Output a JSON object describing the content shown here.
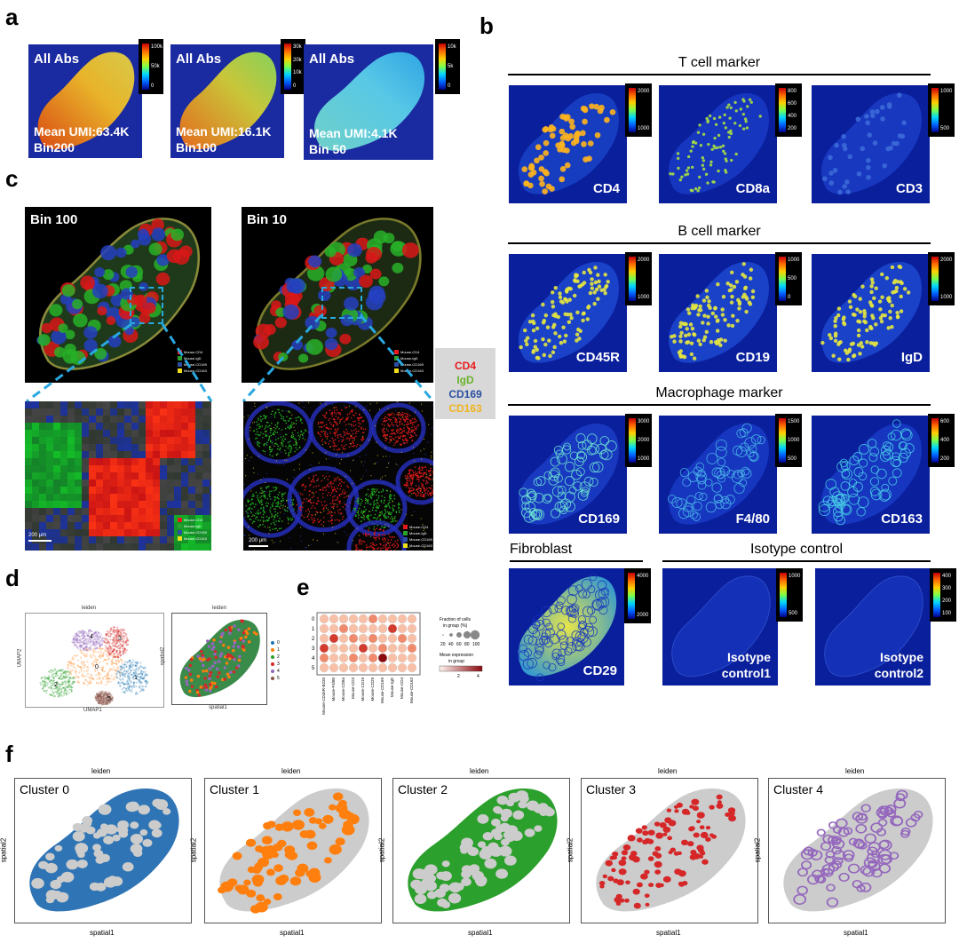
{
  "panel_labels": {
    "a": "a",
    "b": "b",
    "c": "c",
    "d": "d",
    "e": "e",
    "f": "f"
  },
  "panel_a": {
    "tiles": [
      {
        "title": "All Abs",
        "caption1": "Mean UMI:63.4K",
        "caption2": "Bin200",
        "ticks": [
          "100k",
          "50k",
          "0"
        ]
      },
      {
        "title": "All Abs",
        "caption1": "Mean UMI:16.1K",
        "caption2": "Bin100",
        "ticks": [
          "30k",
          "20k",
          "10k",
          "0"
        ]
      },
      {
        "title": "All Abs",
        "caption1": "Mean UMI:4.1K",
        "caption2": "Bin 50",
        "ticks": [
          "10k",
          "5k",
          "0"
        ]
      }
    ]
  },
  "panel_b": {
    "sections": [
      {
        "title": "T cell marker",
        "tiles": [
          {
            "label": "CD4",
            "ticks": [
              "2000",
              "1000"
            ]
          },
          {
            "label": "CD8a",
            "ticks": [
              "800",
              "600",
              "400",
              "200"
            ]
          },
          {
            "label": "CD3",
            "ticks": [
              "1000",
              "500"
            ]
          }
        ]
      },
      {
        "title": "B cell marker",
        "tiles": [
          {
            "label": "CD45R",
            "ticks": [
              "2000",
              "1000"
            ]
          },
          {
            "label": "CD19",
            "ticks": [
              "1000",
              "500",
              "0"
            ]
          },
          {
            "label": "IgD",
            "ticks": [
              "2000",
              "1000"
            ]
          }
        ]
      },
      {
        "title": "Macrophage marker",
        "tiles": [
          {
            "label": "CD169",
            "ticks": [
              "3000",
              "2000",
              "1000"
            ]
          },
          {
            "label": "F4/80",
            "ticks": [
              "1500",
              "1000",
              "500"
            ]
          },
          {
            "label": "CD163",
            "ticks": [
              "600",
              "400",
              "200"
            ]
          }
        ]
      }
    ],
    "fibroblast": {
      "title": "Fibroblast",
      "label": "CD29",
      "ticks": [
        "4000",
        "2000"
      ]
    },
    "isotype": {
      "title": "Isotype control",
      "tiles": [
        {
          "label1": "Isotype",
          "label2": "control1",
          "ticks": [
            "1000",
            "500"
          ]
        },
        {
          "label1": "Isotype",
          "label2": "control2",
          "ticks": [
            "400",
            "300",
            "200",
            "100"
          ]
        }
      ]
    }
  },
  "panel_c": {
    "bin100": "Bin 100",
    "bin10": "Bin 10",
    "mini_legend": [
      "Mouse-CD4",
      "Mouse-IgD",
      "Mouse-CD169",
      "Mouse-CD163"
    ],
    "scale": "200 μm",
    "legend": [
      {
        "label": "CD4",
        "color": "#e8191c"
      },
      {
        "label": "IgD",
        "color": "#6ab42d"
      },
      {
        "label": "CD169",
        "color": "#2b4ea2"
      },
      {
        "label": "CD163",
        "color": "#f0b41c"
      }
    ]
  },
  "panel_d": {
    "title": "leiden",
    "umap_xlabel": "UMAP1",
    "umap_ylabel": "UMAP2",
    "spatial_xlabel": "spatial1",
    "spatial_ylabel": "spatial2",
    "clusters": [
      "0",
      "1",
      "2",
      "3",
      "4",
      "5"
    ],
    "cluster_colors": [
      "#1f77b4",
      "#ff7f0e",
      "#2ca02c",
      "#d62728",
      "#9467bd",
      "#8c564b"
    ]
  },
  "panel_e": {
    "rows": [
      "0",
      "1",
      "2",
      "3",
      "4",
      "5"
    ],
    "cols": [
      "Mouse-CD45R-B220",
      "Mouse-F4/80",
      "Mouse-CD8a",
      "Mouse-CD3",
      "Mouse-CD19",
      "Mouse-CD29",
      "Mouse-CD169",
      "Mouse-IgD",
      "Mouse-CD4",
      "Mouse-CD163"
    ],
    "size_title1": "Fraction of cells",
    "size_title2": "in group (%)",
    "size_ticks": [
      "20",
      "40",
      "60",
      "80",
      "100"
    ],
    "color_title1": "Mean expression",
    "color_title2": "in group",
    "color_ticks": [
      "2",
      "4"
    ]
  },
  "panel_f": {
    "plots": [
      {
        "title": "leiden",
        "cluster": "Cluster 0",
        "color": "#2f74b5"
      },
      {
        "title": "leiden",
        "cluster": "Cluster 1",
        "color": "#ff7f0e"
      },
      {
        "title": "leiden",
        "cluster": "Cluster 2",
        "color": "#2ca02c"
      },
      {
        "title": "leiden",
        "cluster": "Cluster 3",
        "color": "#d62728"
      },
      {
        "title": "leiden",
        "cluster": "Cluster 4",
        "color": "#9467bd"
      }
    ],
    "xlabel": "spatial1",
    "ylabel": "spatial2"
  }
}
